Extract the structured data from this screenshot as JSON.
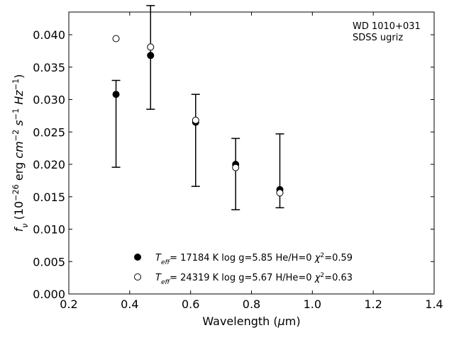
{
  "chart_data": {
    "type": "scatter",
    "xlabel_parts": [
      "Wavelength (",
      "μ",
      "m)"
    ],
    "ylabel_parts": [
      "f",
      "ν",
      " (10",
      "−26",
      " erg ",
      "cm",
      "−2",
      " ",
      "s",
      "−1",
      " ",
      "Hz",
      "−1",
      ")"
    ],
    "xlim": [
      0.2,
      1.4
    ],
    "ylim": [
      0.0,
      0.0435
    ],
    "xticks": [
      0.2,
      0.4,
      0.6,
      0.8,
      1.0,
      1.2,
      1.4
    ],
    "xtick_labels": [
      "0.2",
      "0.4",
      "0.6",
      "0.8",
      "1.0",
      "1.2",
      "1.4"
    ],
    "yticks": [
      0.0,
      0.005,
      0.01,
      0.015,
      0.02,
      0.025,
      0.03,
      0.035,
      0.04
    ],
    "ytick_labels": [
      "0.000",
      "0.005",
      "0.010",
      "0.015",
      "0.020",
      "0.025",
      "0.030",
      "0.035",
      "0.040"
    ],
    "grid": false,
    "legend_position": "lower-center",
    "annotations": [
      "WD 1010+031",
      "SDSS ugriz"
    ],
    "observed": {
      "x": [
        0.3551,
        0.4686,
        0.6166,
        0.748,
        0.8932
      ],
      "y": [
        0.02625,
        0.0365,
        0.0237,
        0.0185,
        0.019
      ],
      "yerr": [
        0.0067,
        0.008,
        0.0071,
        0.0055,
        0.0057
      ]
    },
    "series": [
      {
        "name_parts": [
          "T",
          "eff",
          "= 17184 K  log g=5.85  He/H=0  ",
          "χ",
          "2",
          "=0.59"
        ],
        "marker": "filled-circle",
        "color": "#000000",
        "x": [
          0.3551,
          0.4686,
          0.6166,
          0.748,
          0.8932
        ],
        "y": [
          0.0308,
          0.0368,
          0.0265,
          0.02,
          0.0161
        ]
      },
      {
        "name_parts": [
          "T",
          "eff",
          "= 24319 K  log g=5.67  H/He=0  ",
          "χ",
          "2",
          "=0.63"
        ],
        "marker": "open-circle",
        "color": "#000000",
        "x": [
          0.3551,
          0.4686,
          0.6166,
          0.748,
          0.8932
        ],
        "y": [
          0.0394,
          0.0381,
          0.0268,
          0.0195,
          0.0156
        ]
      }
    ]
  }
}
